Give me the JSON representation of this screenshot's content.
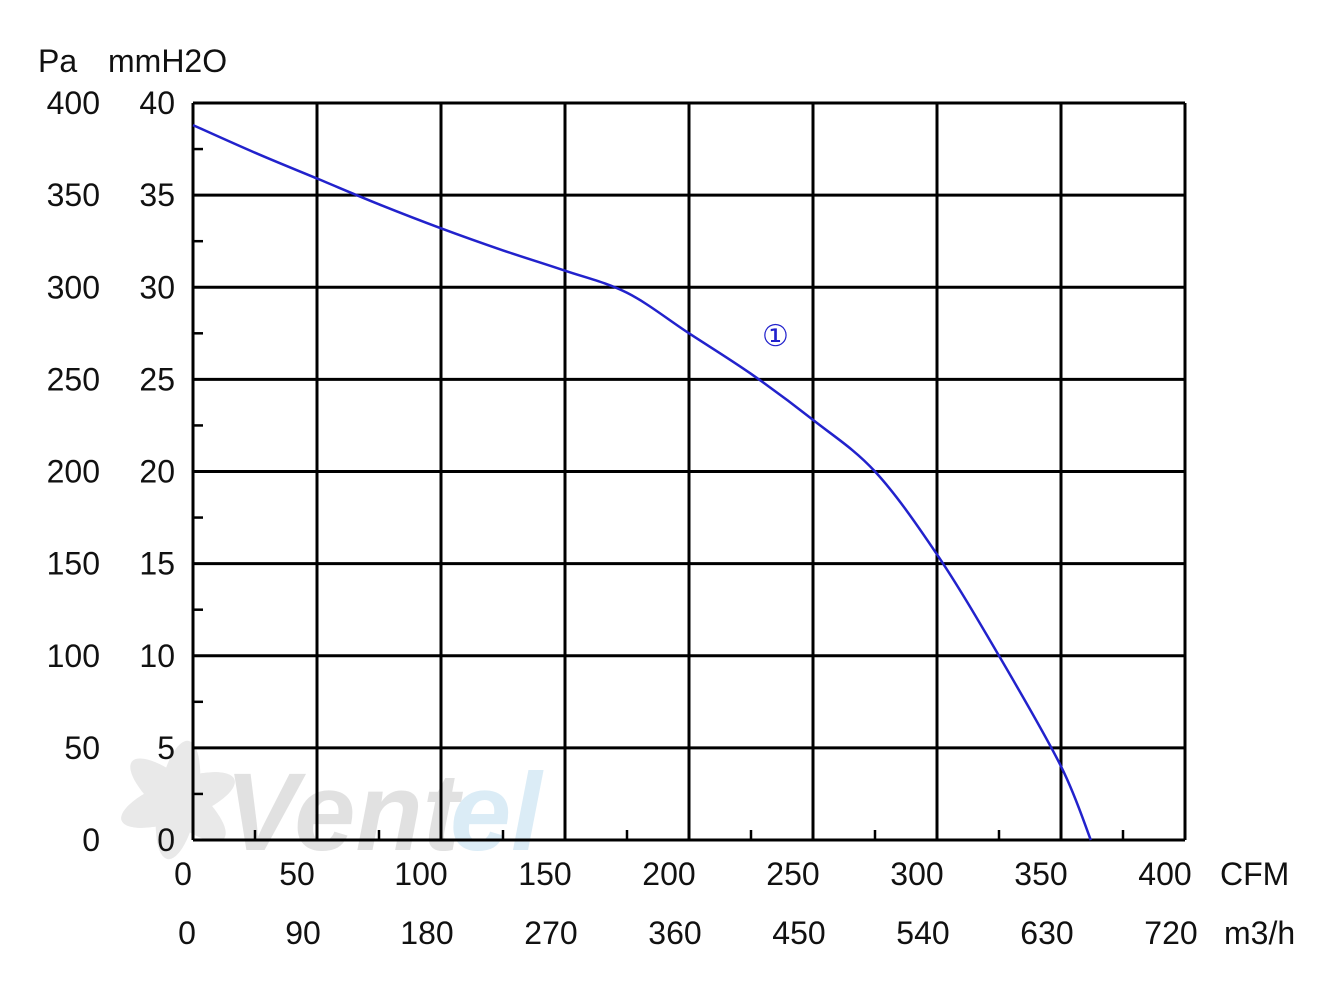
{
  "chart_data": {
    "type": "line",
    "title": "",
    "y_units": {
      "primary": "Pa",
      "secondary": "mmH2O"
    },
    "x_units": {
      "primary": "CFM",
      "secondary": "m3/h"
    },
    "y_primary_ticks": [
      "0",
      "50",
      "100",
      "150",
      "200",
      "250",
      "300",
      "350",
      "400"
    ],
    "y_secondary_ticks": [
      "0",
      "5",
      "10",
      "15",
      "20",
      "25",
      "30",
      "35",
      "40"
    ],
    "x_primary_ticks": [
      "0",
      "50",
      "100",
      "150",
      "200",
      "250",
      "300",
      "350",
      "400"
    ],
    "x_secondary_ticks": [
      "0",
      "90",
      "180",
      "270",
      "360",
      "450",
      "540",
      "630",
      "720"
    ],
    "xlim": [
      0,
      400
    ],
    "ylim": [
      0,
      400
    ],
    "grid": true,
    "series": [
      {
        "name": "①",
        "color": "#2222cc",
        "x": [
          0,
          25,
          50,
          75,
          100,
          125,
          150,
          175,
          200,
          225,
          250,
          275,
          300,
          325,
          350,
          362
        ],
        "y": [
          388,
          373,
          359,
          345,
          332,
          320,
          309,
          297,
          275,
          253,
          228,
          200,
          155,
          100,
          40,
          0
        ]
      }
    ],
    "watermark": {
      "text_a": "Vent",
      "text_b": "el",
      "color_a": "#d8d8d8",
      "color_b": "#cfe6f4"
    }
  }
}
